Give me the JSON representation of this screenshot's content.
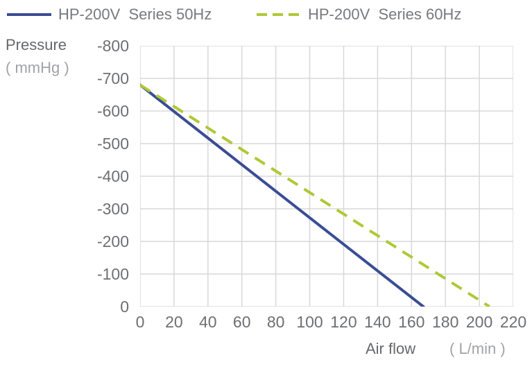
{
  "legend": {
    "items": [
      {
        "key": "50hz",
        "label": "HP-200V  Series 50Hz",
        "color": "#3a4d94",
        "style": "solid"
      },
      {
        "key": "60hz",
        "label": "HP-200V  Series 60Hz",
        "color": "#adc937",
        "style": "dashed"
      }
    ]
  },
  "y_axis": {
    "title": "Pressure",
    "unit": "( mmHg )"
  },
  "x_axis": {
    "title": "Air flow",
    "unit": "( L/min )"
  },
  "colors": {
    "grid": "#d8d8d8",
    "tick_text": "#6d6f72",
    "title_text": "#66686b",
    "unit_text": "#a1a3a6",
    "legend_text": "#77797c",
    "series_50hz": "#3a4d94",
    "series_60hz": "#adc937"
  },
  "chart_data": {
    "type": "line",
    "title": "",
    "xlabel": "Air flow ( L/min )",
    "ylabel": "Pressure ( mmHg )",
    "xlim": [
      0,
      220
    ],
    "ylim": [
      -800,
      0
    ],
    "x_ticks": [
      0,
      20,
      40,
      60,
      80,
      100,
      120,
      140,
      160,
      180,
      200,
      220
    ],
    "y_ticks": [
      -800,
      -700,
      -600,
      -500,
      -400,
      -300,
      -200,
      -100,
      0
    ],
    "grid": true,
    "legend_position": "top",
    "series": [
      {
        "key": "50hz",
        "name": "HP-200V  Series 50Hz",
        "color": "#3a4d94",
        "style": "solid",
        "points": [
          {
            "x": 0,
            "y": -680
          },
          {
            "x": 40,
            "y": -517
          },
          {
            "x": 80,
            "y": -354
          },
          {
            "x": 120,
            "y": -191
          },
          {
            "x": 167,
            "y": 0
          }
        ]
      },
      {
        "key": "60hz",
        "name": "HP-200V  Series 60Hz",
        "color": "#adc937",
        "style": "dashed",
        "points": [
          {
            "x": 0,
            "y": -680
          },
          {
            "x": 50,
            "y": -515
          },
          {
            "x": 100,
            "y": -350
          },
          {
            "x": 150,
            "y": -185
          },
          {
            "x": 206,
            "y": 0
          }
        ]
      }
    ]
  }
}
